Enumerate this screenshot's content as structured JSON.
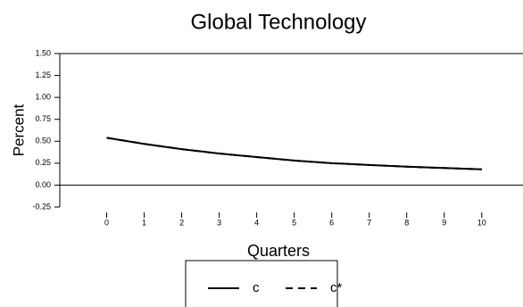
{
  "chart_data": {
    "type": "line",
    "title": "Global Technology",
    "x_label": "Quarters",
    "y_label": "Percent",
    "x": [
      0,
      1,
      2,
      3,
      4,
      5,
      6,
      7,
      8,
      9,
      10
    ],
    "series": [
      {
        "name": "c",
        "color": "#000000",
        "dash": "solid",
        "values": [
          0.54,
          0.47,
          0.41,
          0.36,
          0.32,
          0.28,
          0.25,
          0.23,
          0.21,
          0.195,
          0.18
        ]
      },
      {
        "name": "c*",
        "color": "#000000",
        "dash": "dashed",
        "values": [
          0.54,
          0.47,
          0.41,
          0.36,
          0.32,
          0.28,
          0.25,
          0.23,
          0.21,
          0.195,
          0.18
        ]
      }
    ],
    "xlim": [
      -1.25,
      11.1
    ],
    "ylim": [
      -0.25,
      1.5
    ],
    "xticks": [
      0,
      1,
      2,
      3,
      4,
      5,
      6,
      7,
      8,
      9,
      10
    ],
    "yticks": [
      -0.25,
      {
        "value": 0,
        "label": "0.00"
      },
      0.25,
      {
        "value": 0.5,
        "label": "0.50"
      },
      0.75,
      {
        "value": 1,
        "label": "1.00"
      },
      1.25,
      {
        "value": 1.5,
        "label": "1.50"
      }
    ]
  }
}
